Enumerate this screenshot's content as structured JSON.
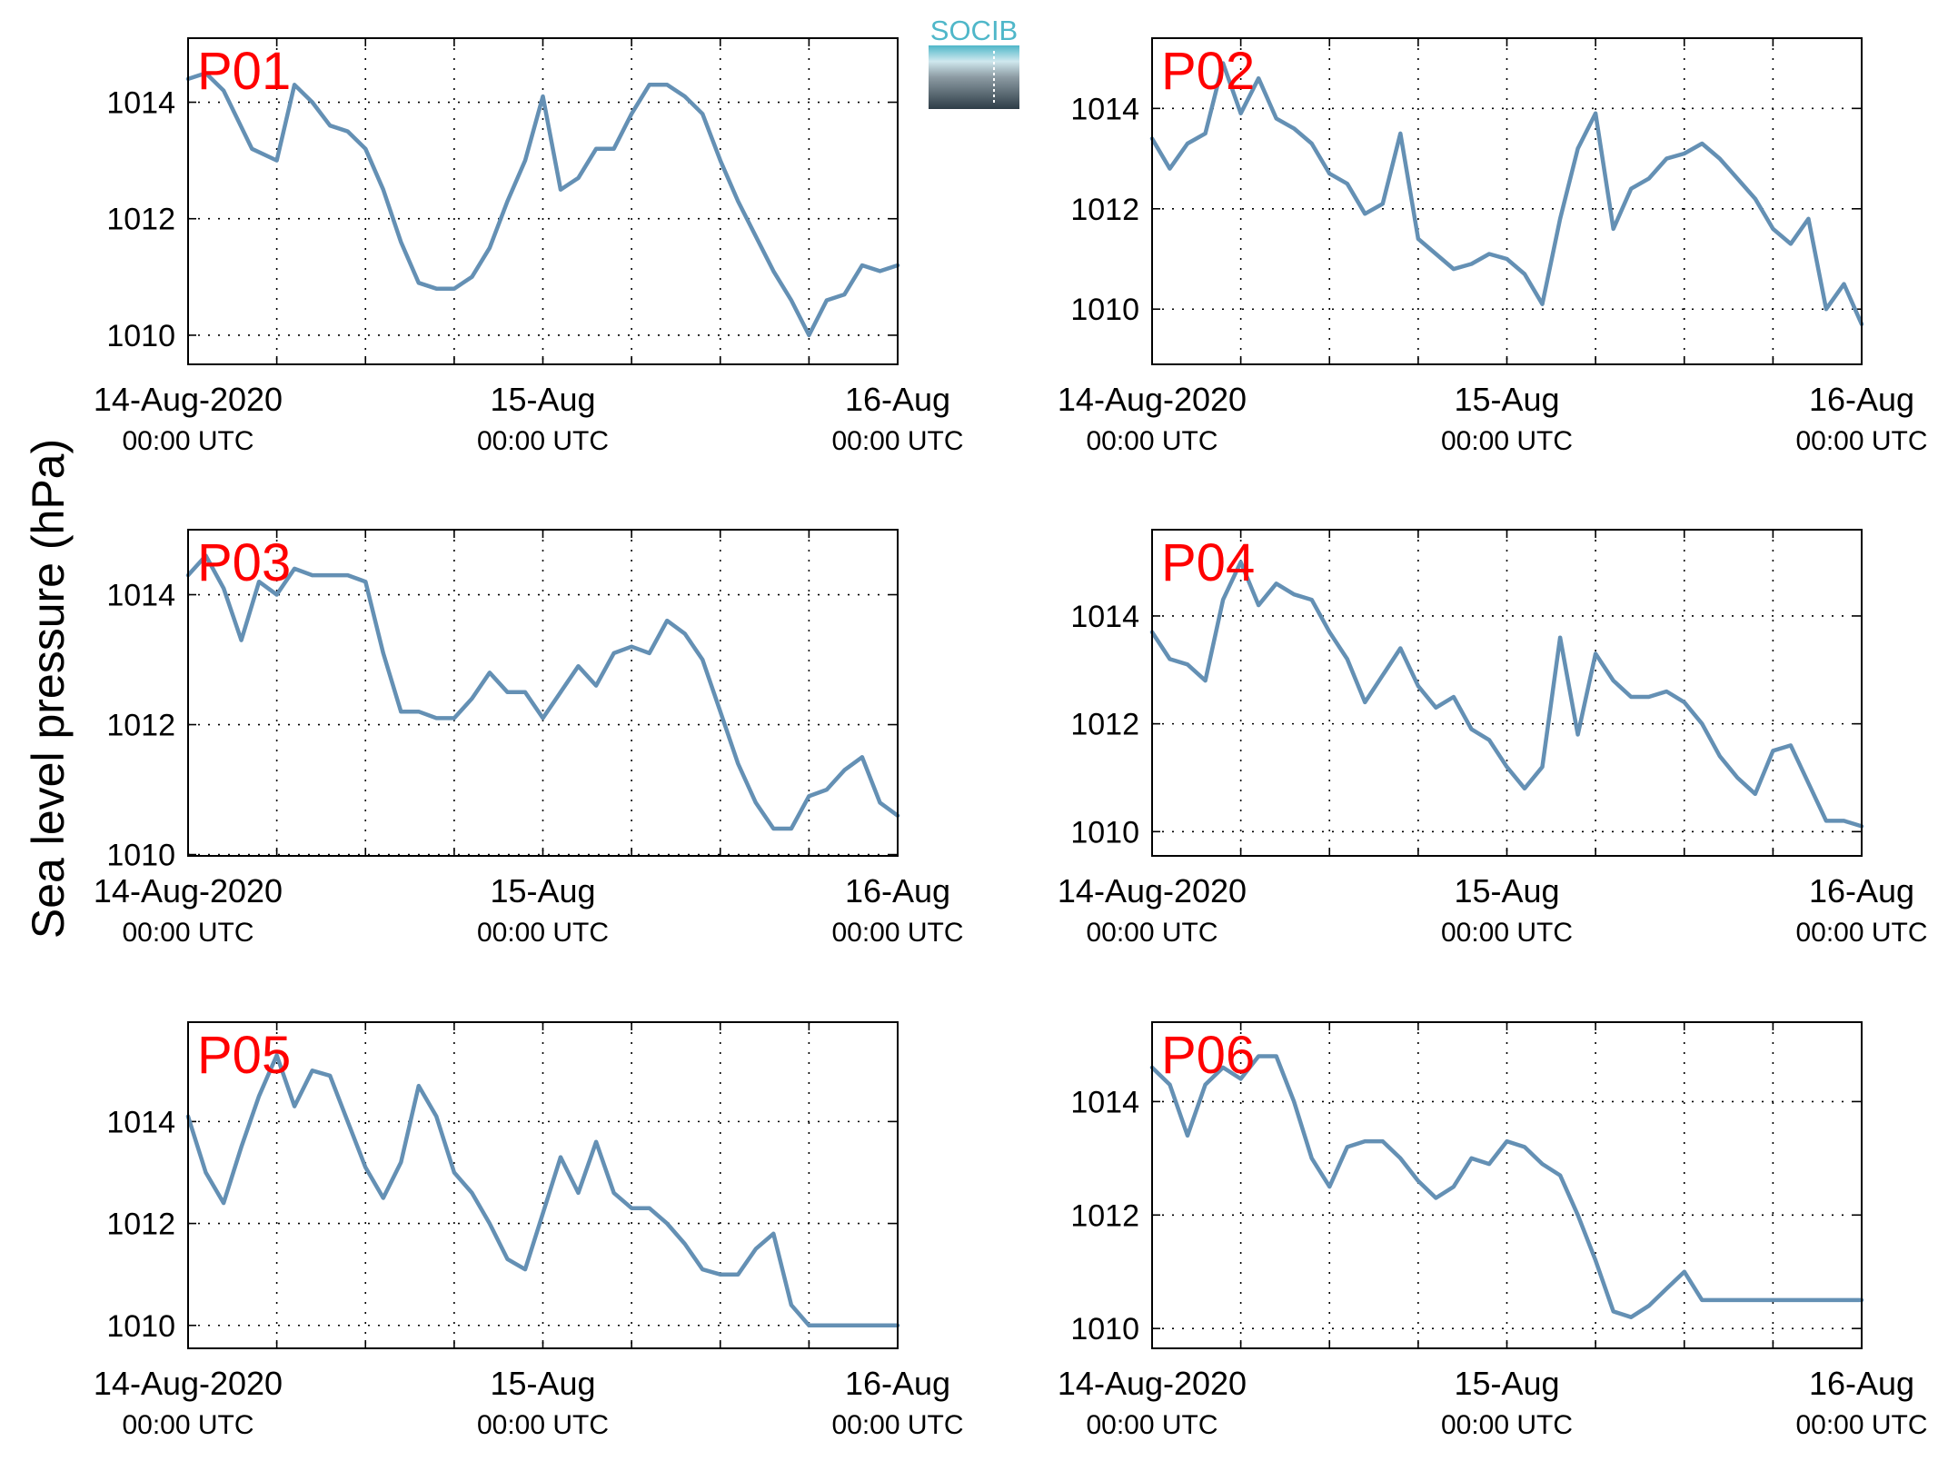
{
  "figure": {
    "ylabel": "Sea level pressure (hPa)",
    "logo_text": "SOCIB",
    "colors": {
      "line": "#6490b4",
      "panel_label": "#ff0000",
      "grid": "#000000",
      "logo_top": "#4fb7c9",
      "logo_bottom": "#2e3d47"
    }
  },
  "chart_data": [
    {
      "type": "line",
      "title": "P01",
      "x_tick_labels": [
        [
          "14-Aug-2020",
          "00:00 UTC"
        ],
        [
          "15-Aug",
          "00:00 UTC"
        ],
        [
          "16-Aug",
          "00:00 UTC"
        ]
      ],
      "y_ticks": [
        1010,
        1012,
        1014
      ],
      "ylim": [
        1009.5,
        1015.1
      ],
      "grid": true,
      "series": [
        {
          "x": [
            0,
            0.05,
            0.1,
            0.18,
            0.25,
            0.3,
            0.35,
            0.4,
            0.45,
            0.5,
            0.55,
            0.6,
            0.65,
            0.7,
            0.75,
            0.8,
            0.85,
            0.9,
            0.95,
            1.0,
            1.05,
            1.1,
            1.15,
            1.2,
            1.25,
            1.3,
            1.35,
            1.4,
            1.45,
            1.5,
            1.55,
            1.6,
            1.65,
            1.7,
            1.75,
            1.8,
            1.85,
            1.9,
            1.95,
            2.0
          ],
          "values": [
            1014.4,
            1014.5,
            1014.2,
            1013.2,
            1013.0,
            1014.3,
            1014.0,
            1013.6,
            1013.5,
            1013.2,
            1012.5,
            1011.6,
            1010.9,
            1010.8,
            1010.8,
            1011.0,
            1011.5,
            1012.3,
            1013.0,
            1014.1,
            1012.5,
            1012.7,
            1013.2,
            1013.2,
            1013.8,
            1014.3,
            1014.3,
            1014.1,
            1013.8,
            1013.0,
            1012.3,
            1011.7,
            1011.1,
            1010.6,
            1010.0,
            1010.6,
            1010.7,
            1011.2,
            1011.1,
            1011.2
          ]
        }
      ]
    },
    {
      "type": "line",
      "title": "P02",
      "x_tick_labels": [
        [
          "14-Aug-2020",
          "00:00 UTC"
        ],
        [
          "15-Aug",
          "00:00 UTC"
        ],
        [
          "16-Aug",
          "00:00 UTC"
        ]
      ],
      "y_ticks": [
        1010,
        1012,
        1014
      ],
      "ylim": [
        1008.9,
        1015.4
      ],
      "grid": true,
      "series": [
        {
          "x": [
            0,
            0.05,
            0.1,
            0.15,
            0.2,
            0.25,
            0.3,
            0.35,
            0.4,
            0.45,
            0.5,
            0.55,
            0.6,
            0.65,
            0.7,
            0.75,
            0.8,
            0.85,
            0.9,
            0.95,
            1.0,
            1.05,
            1.1,
            1.15,
            1.2,
            1.25,
            1.3,
            1.35,
            1.4,
            1.45,
            1.5,
            1.55,
            1.6,
            1.65,
            1.7,
            1.75,
            1.8,
            1.85,
            1.9,
            1.95,
            2.0
          ],
          "values": [
            1013.4,
            1012.8,
            1013.3,
            1013.5,
            1014.9,
            1013.9,
            1014.6,
            1013.8,
            1013.6,
            1013.3,
            1012.7,
            1012.5,
            1011.9,
            1012.1,
            1013.5,
            1011.4,
            1011.1,
            1010.8,
            1010.9,
            1011.1,
            1011.0,
            1010.7,
            1010.1,
            1011.8,
            1013.2,
            1013.9,
            1011.6,
            1012.4,
            1012.6,
            1013.0,
            1013.1,
            1013.3,
            1013.0,
            1012.6,
            1012.2,
            1011.6,
            1011.3,
            1011.8,
            1010.0,
            1010.5,
            1009.7
          ]
        }
      ]
    },
    {
      "type": "line",
      "title": "P03",
      "x_tick_labels": [
        [
          "14-Aug-2020",
          "00:00 UTC"
        ],
        [
          "15-Aug",
          "00:00 UTC"
        ],
        [
          "16-Aug",
          "00:00 UTC"
        ]
      ],
      "y_ticks": [
        1010,
        1012,
        1014
      ],
      "ylim": [
        1009.98,
        1015.0
      ],
      "grid": true,
      "series": [
        {
          "x": [
            0,
            0.05,
            0.1,
            0.15,
            0.2,
            0.25,
            0.3,
            0.35,
            0.4,
            0.45,
            0.5,
            0.55,
            0.6,
            0.65,
            0.7,
            0.75,
            0.8,
            0.85,
            0.9,
            0.95,
            1.0,
            1.05,
            1.1,
            1.15,
            1.2,
            1.25,
            1.3,
            1.35,
            1.4,
            1.45,
            1.5,
            1.55,
            1.6,
            1.65,
            1.7,
            1.75,
            1.8,
            1.85,
            1.9,
            1.95,
            2.0
          ],
          "values": [
            1014.3,
            1014.6,
            1014.1,
            1013.3,
            1014.2,
            1014.0,
            1014.4,
            1014.3,
            1014.3,
            1014.3,
            1014.2,
            1013.1,
            1012.2,
            1012.2,
            1012.1,
            1012.1,
            1012.4,
            1012.8,
            1012.5,
            1012.5,
            1012.1,
            1012.5,
            1012.9,
            1012.6,
            1013.1,
            1013.2,
            1013.1,
            1013.6,
            1013.4,
            1013.0,
            1012.2,
            1011.4,
            1010.8,
            1010.4,
            1010.4,
            1010.9,
            1011.0,
            1011.3,
            1011.5,
            1010.8,
            1010.6
          ]
        }
      ]
    },
    {
      "type": "line",
      "title": "P04",
      "x_tick_labels": [
        [
          "14-Aug-2020",
          "00:00 UTC"
        ],
        [
          "15-Aug",
          "00:00 UTC"
        ],
        [
          "16-Aug",
          "00:00 UTC"
        ]
      ],
      "y_ticks": [
        1010,
        1012,
        1014
      ],
      "ylim": [
        1009.55,
        1015.6
      ],
      "grid": true,
      "series": [
        {
          "x": [
            0,
            0.05,
            0.1,
            0.15,
            0.2,
            0.25,
            0.3,
            0.35,
            0.4,
            0.45,
            0.5,
            0.55,
            0.6,
            0.65,
            0.7,
            0.75,
            0.8,
            0.85,
            0.9,
            0.95,
            1.0,
            1.05,
            1.1,
            1.15,
            1.2,
            1.25,
            1.3,
            1.35,
            1.4,
            1.45,
            1.5,
            1.55,
            1.6,
            1.65,
            1.7,
            1.75,
            1.8,
            1.85,
            1.9,
            1.95,
            2.0
          ],
          "values": [
            1013.7,
            1013.2,
            1013.1,
            1012.8,
            1014.3,
            1015.0,
            1014.2,
            1014.6,
            1014.4,
            1014.3,
            1013.7,
            1013.2,
            1012.4,
            1012.9,
            1013.4,
            1012.7,
            1012.3,
            1012.5,
            1011.9,
            1011.7,
            1011.2,
            1010.8,
            1011.2,
            1013.6,
            1011.8,
            1013.3,
            1012.8,
            1012.5,
            1012.5,
            1012.6,
            1012.4,
            1012.0,
            1011.4,
            1011.0,
            1010.7,
            1011.5,
            1011.6,
            1010.9,
            1010.2,
            1010.2,
            1010.1
          ]
        }
      ]
    },
    {
      "type": "line",
      "title": "P05",
      "x_tick_labels": [
        [
          "14-Aug-2020",
          "00:00 UTC"
        ],
        [
          "15-Aug",
          "00:00 UTC"
        ],
        [
          "16-Aug",
          "00:00 UTC"
        ]
      ],
      "y_ticks": [
        1010,
        1012,
        1014
      ],
      "ylim": [
        1009.55,
        1015.95
      ],
      "grid": true,
      "series": [
        {
          "x": [
            0,
            0.05,
            0.1,
            0.15,
            0.2,
            0.25,
            0.3,
            0.35,
            0.4,
            0.45,
            0.5,
            0.55,
            0.6,
            0.65,
            0.7,
            0.75,
            0.8,
            0.85,
            0.9,
            0.95,
            1.0,
            1.05,
            1.1,
            1.15,
            1.2,
            1.25,
            1.3,
            1.35,
            1.4,
            1.45,
            1.5,
            1.55,
            1.6,
            1.65,
            1.7,
            1.75,
            1.8,
            1.85,
            1.9,
            1.95,
            2.0
          ],
          "values": [
            1014.1,
            1013.0,
            1012.4,
            1013.5,
            1014.5,
            1015.3,
            1014.3,
            1015.0,
            1014.9,
            1014.0,
            1013.1,
            1012.5,
            1013.2,
            1014.7,
            1014.1,
            1013.0,
            1012.6,
            1012.0,
            1011.3,
            1011.1,
            1012.2,
            1013.3,
            1012.6,
            1013.6,
            1012.6,
            1012.3,
            1012.3,
            1012.0,
            1011.6,
            1011.1,
            1011.0,
            1011.0,
            1011.5,
            1011.8,
            1010.4,
            1010.0,
            1010.0,
            1010.0,
            1010.0,
            1010.0,
            1010.0
          ]
        }
      ]
    },
    {
      "type": "line",
      "title": "P06",
      "x_tick_labels": [
        [
          "14-Aug-2020",
          "00:00 UTC"
        ],
        [
          "15-Aug",
          "00:00 UTC"
        ],
        [
          "16-Aug",
          "00:00 UTC"
        ]
      ],
      "y_ticks": [
        1010,
        1012,
        1014
      ],
      "ylim": [
        1009.65,
        1015.4
      ],
      "grid": true,
      "series": [
        {
          "x": [
            0,
            0.05,
            0.1,
            0.15,
            0.2,
            0.25,
            0.3,
            0.35,
            0.4,
            0.45,
            0.5,
            0.55,
            0.6,
            0.65,
            0.7,
            0.75,
            0.8,
            0.85,
            0.9,
            0.95,
            1.0,
            1.05,
            1.1,
            1.15,
            1.2,
            1.25,
            1.3,
            1.35,
            1.4,
            1.45,
            1.5,
            1.55,
            1.6,
            1.65,
            1.7,
            1.75,
            1.8,
            1.85,
            1.9,
            1.95,
            2.0
          ],
          "values": [
            1014.6,
            1014.3,
            1013.4,
            1014.3,
            1014.6,
            1014.4,
            1014.8,
            1014.8,
            1014.0,
            1013.0,
            1012.5,
            1013.2,
            1013.3,
            1013.3,
            1013.0,
            1012.6,
            1012.3,
            1012.5,
            1013.0,
            1012.9,
            1013.3,
            1013.2,
            1012.9,
            1012.7,
            1012.0,
            1011.2,
            1010.3,
            1010.2,
            1010.4,
            1010.7,
            1011.0,
            1010.5,
            1010.5,
            1010.5,
            1010.5,
            1010.5,
            1010.5,
            1010.5,
            1010.5,
            1010.5,
            1010.5
          ]
        }
      ]
    }
  ]
}
